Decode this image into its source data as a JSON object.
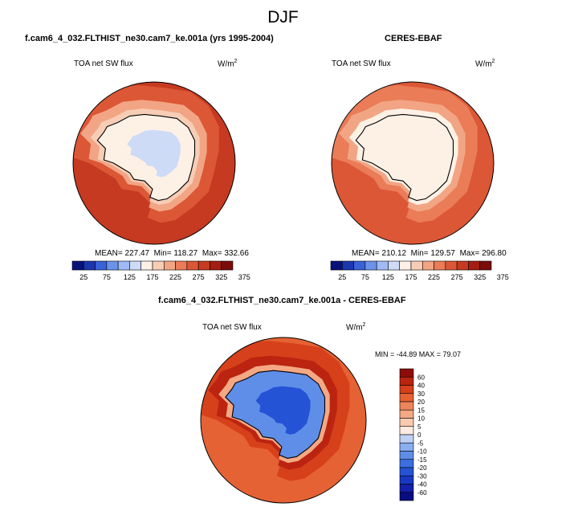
{
  "figure": {
    "season": "DJF",
    "variable": "TOA net SW flux",
    "units_base": "W/m",
    "units_exp": "2"
  },
  "chart_data": [
    {
      "type": "heatmap",
      "projection": "south-polar-stereographic",
      "title": "f.cam6_4_032.FLTHIST_ne30.cam7_ke.001a (yrs 1995-2004)",
      "field_label": "TOA net SW flux",
      "stats": {
        "mean_label": "MEAN= 227.47",
        "min_label": "Min= 118.27",
        "max_label": "Max= 332.66",
        "mean": 227.47,
        "min": 118.27,
        "max": 332.66
      },
      "colorbar": {
        "orientation": "horizontal",
        "labels": [
          "25",
          "75",
          "125",
          "175",
          "225",
          "275",
          "325",
          "375"
        ]
      },
      "zones": [
        {
          "region": "outer ocean",
          "value": 285
        },
        {
          "region": "mid ocean",
          "value": 255
        },
        {
          "region": "sea-ice edge",
          "value": 210
        },
        {
          "region": "coast",
          "value": 175
        },
        {
          "region": "east antarctic plateau",
          "value": 125
        },
        {
          "region": "west antarctica",
          "value": 150
        }
      ]
    },
    {
      "type": "heatmap",
      "projection": "south-polar-stereographic",
      "title": "CERES-EBAF",
      "field_label": "TOA net SW flux",
      "stats": {
        "mean_label": "MEAN= 210.12",
        "min_label": "Min= 129.57",
        "max_label": "Max= 296.80",
        "mean": 210.12,
        "min": 129.57,
        "max": 296.8
      },
      "colorbar": {
        "orientation": "horizontal",
        "labels": [
          "25",
          "75",
          "125",
          "175",
          "225",
          "275",
          "325",
          "375"
        ]
      },
      "zones": [
        {
          "region": "outer ocean",
          "value": 265
        },
        {
          "region": "mid ocean",
          "value": 240
        },
        {
          "region": "sea-ice edge",
          "value": 205
        },
        {
          "region": "coast",
          "value": 170
        },
        {
          "region": "antarctic continent",
          "value": 150
        }
      ]
    },
    {
      "type": "heatmap",
      "projection": "south-polar-stereographic",
      "title": "f.cam6_4_032.FLTHIST_ne30.cam7_ke.001a - CERES-EBAF",
      "field_label": "TOA net SW flux",
      "stats": {
        "range_label": "MIN = -44.89  MAX = 79.07",
        "min": -44.89,
        "max": 79.07
      },
      "colorbar": {
        "orientation": "vertical",
        "labels": [
          "60",
          "40",
          "30",
          "20",
          "15",
          "10",
          "5",
          "0",
          "-5",
          "-10",
          "-15",
          "-20",
          "-30",
          "-40",
          "-60"
        ]
      },
      "zones": [
        {
          "region": "outer ocean",
          "value": 22
        },
        {
          "region": "mid ocean",
          "value": 32
        },
        {
          "region": "pacific sector",
          "value": 45
        },
        {
          "region": "coast",
          "value": 10
        },
        {
          "region": "antarctic continent",
          "value": -12
        },
        {
          "region": "east antarctic interior",
          "value": -25
        }
      ]
    }
  ],
  "colors": {
    "abs_scale": [
      "#08137a",
      "#1c36b0",
      "#3a62d8",
      "#6c93ea",
      "#9fbaf5",
      "#cddbf7",
      "#fdf1e6",
      "#f7cdb6",
      "#f2a584",
      "#ea7c58",
      "#dc5735",
      "#c53a21",
      "#a41e12",
      "#7a0c0a"
    ],
    "diff_scale": [
      "#0a0d80",
      "#1320a8",
      "#1a37c4",
      "#2553d6",
      "#3a6fe0",
      "#5f8ee8",
      "#8aaef0",
      "#bfd0f5",
      "#fdebe0",
      "#f9caaf",
      "#f4a884",
      "#ee8459",
      "#e56234",
      "#d6401a",
      "#bb2410",
      "#8d0c0a"
    ],
    "coastline": "#000000"
  }
}
